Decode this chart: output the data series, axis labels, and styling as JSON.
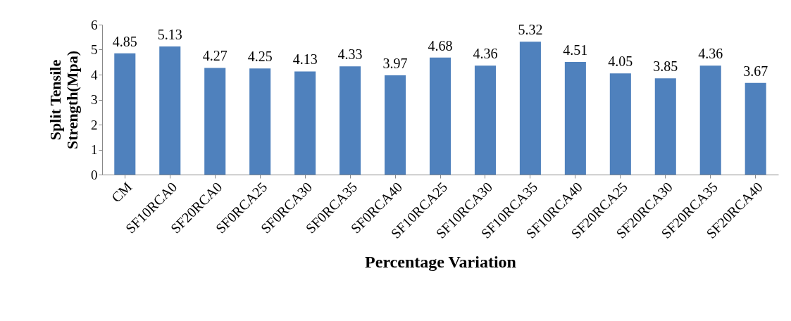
{
  "chart_data": {
    "type": "bar",
    "xlabel": "Percentage Variation",
    "ylabel": "Split Tensile Strength(Mpa)",
    "categories": [
      "CM",
      "SF10RCA0",
      "SF20RCA0",
      "SF0RCA25",
      "SF0RCA30",
      "SF0RCA35",
      "SF0RCA40",
      "SF10RCA25",
      "SF10RCA30",
      "SF10RCA35",
      "SF10RCA40",
      "SF20RCA25",
      "SF20RCA30",
      "SF20RCA35",
      "SF20RCA40"
    ],
    "values": [
      4.85,
      5.13,
      4.27,
      4.25,
      4.13,
      4.33,
      3.97,
      4.68,
      4.36,
      5.32,
      4.51,
      4.05,
      3.85,
      4.36,
      3.67
    ],
    "color": "#4f81bd",
    "ylim": [
      0,
      6
    ],
    "yticks": [
      0,
      1,
      2,
      3,
      4,
      5,
      6
    ],
    "data_labels": true
  }
}
